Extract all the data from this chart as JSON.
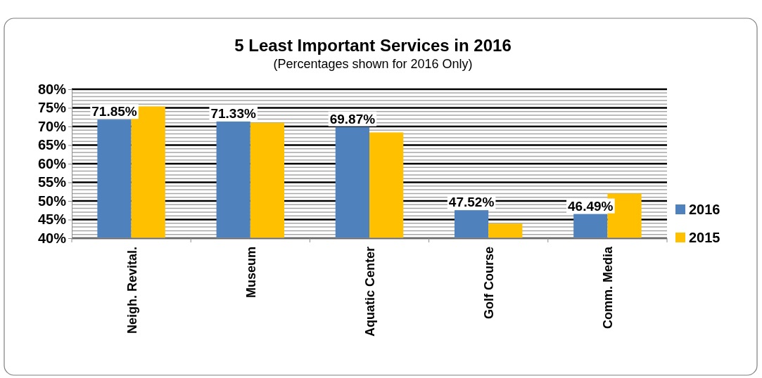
{
  "chart_data": {
    "type": "bar",
    "title": "5 Least Important Services in 2016",
    "subtitle": "(Percentages shown for 2016 Only)",
    "categories": [
      "Neigh. Revital.",
      "Museum",
      "Aquatic Center",
      "Golf Course",
      "Comm. Media"
    ],
    "series": [
      {
        "name": "2016",
        "color": "#4f81bd",
        "values": [
          71.85,
          71.33,
          69.87,
          47.52,
          46.49
        ],
        "value_labels": [
          "71.85%",
          "71.33%",
          "69.87%",
          "47.52%",
          "46.49%"
        ]
      },
      {
        "name": "2015",
        "color": "#ffc000",
        "values": [
          75.4,
          71.0,
          68.4,
          43.9,
          52.0
        ]
      }
    ],
    "ylim": [
      40,
      80
    ],
    "yticks": [
      {
        "value": 40,
        "label": "40%"
      },
      {
        "value": 45,
        "label": "45%"
      },
      {
        "value": 50,
        "label": "50%"
      },
      {
        "value": 55,
        "label": "55%"
      },
      {
        "value": 60,
        "label": "60%"
      },
      {
        "value": 65,
        "label": "65%"
      },
      {
        "value": 70,
        "label": "70%"
      },
      {
        "value": 75,
        "label": "75%"
      },
      {
        "value": 80,
        "label": "80%"
      }
    ],
    "grid": "y",
    "legend": "right"
  }
}
